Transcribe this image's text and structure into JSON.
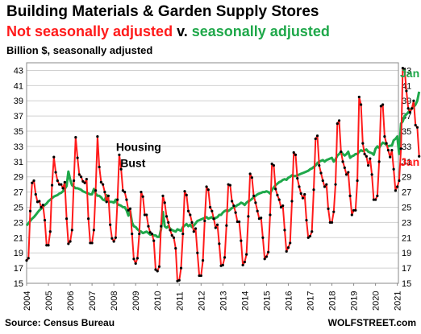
{
  "title": "Building Materials & Garden Supply Stores",
  "subtitle_left": "Not seasonally adjusted",
  "subtitle_mid": " v. ",
  "subtitle_right": "seasonally adjusted",
  "units": "Billion $, seasonally adjusted",
  "source": "Source: Census Bureau",
  "brand": "WOLFSTREET.com",
  "colors": {
    "nsa": "#ff1a1a",
    "sa": "#1fa84a",
    "marker": "#000000",
    "grid": "#d0d0d0"
  },
  "chart_data": {
    "type": "line",
    "ylim": [
      15,
      44
    ],
    "yticks": [
      15,
      17,
      19,
      21,
      23,
      25,
      27,
      29,
      31,
      33,
      35,
      37,
      39,
      41,
      43
    ],
    "xticks": [
      "2004",
      "2005",
      "2006",
      "2007",
      "2008",
      "2009",
      "2010",
      "2011",
      "2012",
      "2013",
      "2014",
      "2015",
      "2016",
      "2017",
      "2018",
      "2019",
      "2020",
      "2021"
    ],
    "grid": "horizontal",
    "annotations": [
      {
        "text": "Housing",
        "x": 2008.1,
        "y": 32.4
      },
      {
        "text": "Bust",
        "x": 2008.3,
        "y": 30.3
      }
    ],
    "series": [
      {
        "name": "Not seasonally adjusted",
        "start": [
          2004,
          1
        ],
        "values": [
          18.0,
          18.3,
          24.5,
          28.2,
          28.5,
          26.7,
          25.7,
          25.8,
          25.0,
          25.3,
          23.3,
          20.0,
          20.0,
          21.8,
          27.9,
          31.6,
          29.6,
          28.5,
          28.0,
          28.0,
          27.5,
          28.3,
          23.5,
          20.2,
          20.5,
          22.0,
          28.5,
          34.2,
          31.5,
          29.3,
          29.0,
          28.4,
          28.2,
          28.7,
          23.5,
          20.3,
          20.3,
          22.0,
          27.2,
          34.3,
          30.3,
          28.3,
          28.0,
          27.0,
          25.7,
          26.5,
          22.7,
          20.9,
          20.5,
          21.0,
          26.0,
          31.9,
          30.0,
          27.2,
          27.0,
          26.0,
          24.6,
          24.8,
          21.5,
          18.2,
          17.6,
          18.3,
          21.5,
          27.0,
          26.4,
          24.0,
          24.0,
          22.5,
          21.7,
          21.5,
          20.6,
          16.8,
          16.6,
          17.2,
          22.5,
          26.5,
          25.6,
          23.8,
          23.0,
          22.0,
          21.3,
          21.0,
          19.6,
          15.3,
          15.4,
          17.0,
          21.5,
          27.1,
          26.6,
          24.5,
          24.0,
          23.0,
          21.8,
          22.2,
          19.0,
          16.0,
          16.0,
          18.0,
          23.2,
          27.7,
          27.3,
          25.0,
          24.5,
          23.5,
          22.3,
          22.7,
          20.2,
          17.3,
          17.4,
          18.4,
          22.6,
          28.0,
          27.9,
          25.8,
          25.2,
          24.3,
          23.1,
          23.1,
          20.6,
          17.4,
          17.8,
          18.8,
          23.8,
          29.4,
          28.9,
          26.5,
          25.6,
          24.5,
          23.5,
          23.6,
          21.0,
          18.2,
          18.5,
          19.1,
          24.0,
          30.7,
          30.5,
          27.4,
          26.6,
          26.0,
          25.0,
          25.2,
          22.0,
          19.2,
          19.7,
          20.3,
          25.8,
          32.2,
          31.9,
          28.8,
          27.7,
          26.8,
          26.2,
          26.7,
          23.3,
          21.0,
          21.2,
          21.8,
          27.3,
          34.0,
          34.4,
          30.5,
          29.5,
          28.5,
          27.7,
          28.0,
          24.8,
          23.0,
          23.0,
          24.4,
          28.0,
          36.0,
          36.4,
          32.3,
          31.0,
          30.2,
          29.3,
          29.6,
          26.5,
          24.0,
          24.6,
          24.6,
          28.5,
          39.5,
          38.5,
          33.4,
          32.0,
          31.7,
          30.5,
          31.4,
          29.3,
          26.0,
          26.0,
          26.5,
          31.0,
          38.3,
          38.5,
          34.3,
          33.4,
          32.5,
          31.6,
          32.5,
          30.0,
          27.2,
          27.7,
          28.5,
          32.7,
          43.3,
          43.1,
          40.3,
          38.0,
          37.5,
          38.0,
          39.0,
          35.8,
          35.5,
          31.7
        ]
      },
      {
        "name": "Seasonally adjusted",
        "start": [
          2004,
          1
        ],
        "values": [
          22.6,
          22.9,
          23.2,
          23.5,
          23.7,
          24.0,
          24.3,
          24.6,
          24.8,
          25.1,
          25.3,
          25.5,
          25.8,
          26.0,
          26.2,
          26.4,
          26.5,
          26.6,
          26.8,
          26.9,
          27.1,
          27.4,
          27.8,
          29.7,
          28.6,
          27.9,
          27.7,
          27.5,
          27.5,
          27.4,
          27.3,
          27.1,
          27.0,
          26.9,
          26.8,
          26.7,
          26.7,
          27.4,
          26.8,
          26.5,
          26.5,
          26.3,
          26.0,
          25.9,
          26.6,
          25.8,
          25.7,
          25.7,
          25.6,
          26.0,
          25.4,
          25.3,
          25.2,
          25.0,
          25.0,
          24.6,
          23.9,
          24.5,
          23.0,
          22.5,
          22.4,
          22.1,
          21.9,
          21.8,
          21.6,
          21.7,
          21.8,
          21.6,
          21.4,
          21.4,
          21.3,
          21.3,
          21.1,
          21.1,
          22.1,
          24.4,
          22.5,
          22.3,
          22.5,
          22.2,
          22.0,
          21.9,
          21.8,
          22.1,
          22.0,
          21.9,
          22.4,
          22.6,
          22.8,
          22.5,
          22.7,
          22.4,
          22.6,
          22.9,
          23.2,
          23.3,
          23.4,
          23.5,
          23.6,
          23.7,
          23.5,
          23.6,
          23.7,
          23.4,
          23.6,
          23.7,
          24.0,
          24.0,
          24.3,
          24.5,
          24.6,
          24.5,
          24.7,
          24.9,
          25.0,
          25.1,
          25.3,
          25.4,
          25.6,
          25.5,
          25.3,
          25.6,
          25.8,
          25.9,
          26.1,
          26.3,
          26.5,
          26.7,
          26.8,
          26.9,
          27.0,
          27.0,
          27.1,
          27.0,
          26.8,
          27.3,
          27.6,
          27.9,
          28.1,
          28.3,
          28.4,
          28.6,
          28.7,
          28.6,
          28.9,
          29.0,
          29.2,
          29.1,
          29.1,
          29.2,
          29.3,
          29.4,
          29.5,
          29.6,
          29.7,
          29.8,
          30.0,
          30.1,
          30.3,
          30.5,
          30.8,
          31.0,
          31.1,
          31.2,
          31.0,
          31.2,
          31.3,
          31.4,
          31.5,
          31.0,
          31.3,
          31.8,
          32.0,
          32.3,
          32.0,
          31.8,
          32.0,
          32.3,
          31.5,
          31.7,
          31.8,
          32.0,
          32.0,
          32.3,
          32.5,
          32.4,
          32.5,
          32.6,
          32.3,
          32.2,
          32.1,
          31.9,
          32.7,
          33.0,
          32.8,
          33.2,
          33.5,
          33.4,
          33.2,
          33.0,
          33.1,
          33.1,
          33.8,
          34.0,
          34.3,
          32.0,
          36.0,
          36.3,
          37.0,
          37.2,
          37.5,
          37.8,
          38.0,
          38.2,
          38.5,
          39.0,
          40.2
        ]
      }
    ],
    "end_labels": [
      {
        "series": 1,
        "text": "Jan"
      },
      {
        "series": 0,
        "text": "Jan"
      }
    ]
  }
}
